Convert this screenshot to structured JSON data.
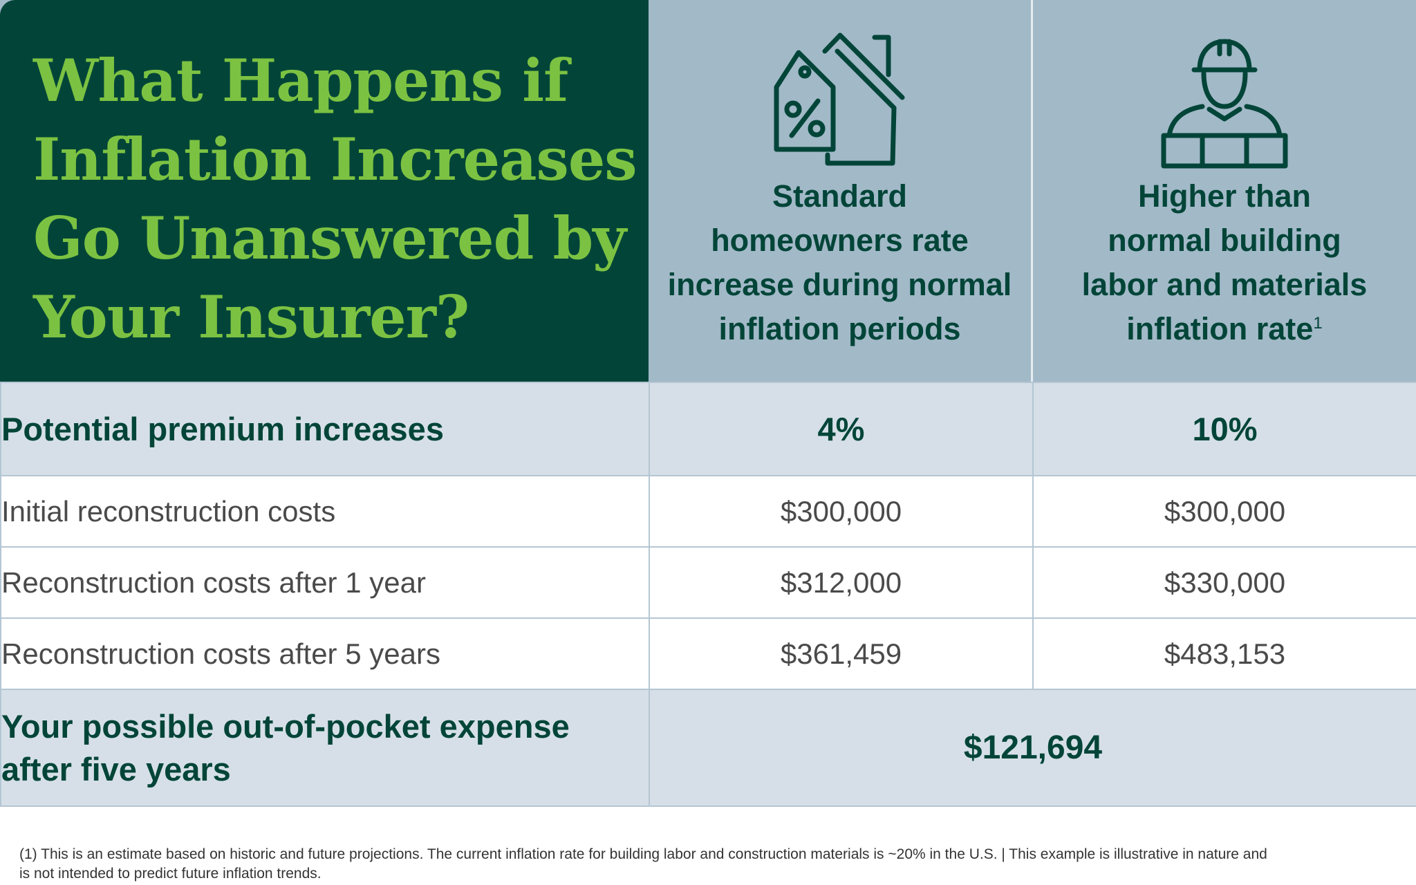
{
  "title": {
    "line1": "What Happens if",
    "line2": "Inflation Increases",
    "line3": "Go Unanswered by",
    "line4": "Your Insurer?"
  },
  "columns": [
    {
      "icon": "house-price-tag-percent-icon",
      "label_line1": "Standard",
      "label_line2": "homeowners rate",
      "label_line3": "increase during normal",
      "label_line4": "inflation periods"
    },
    {
      "icon": "construction-worker-bricks-icon",
      "label_line1": "Higher than",
      "label_line2": "normal building",
      "label_line3": "labor and materials",
      "label_line4": "inflation rate",
      "footnote_marker": "1"
    }
  ],
  "rows": {
    "premium": {
      "label": "Potential premium increases",
      "standard": "4%",
      "higher": "10%"
    },
    "initial": {
      "label": "Initial reconstruction costs",
      "standard": "$300,000",
      "higher": "$300,000"
    },
    "year1": {
      "label": "Reconstruction costs after 1 year",
      "standard": "$312,000",
      "higher": "$330,000"
    },
    "year5": {
      "label": "Reconstruction costs after 5 years",
      "standard": "$361,459",
      "higher": "$483,153"
    },
    "total": {
      "label_line1": "Your possible out-of-pocket expense",
      "label_line2": "after five years",
      "value": "$121,694"
    }
  },
  "footnote": {
    "line1": "(1) This is an estimate based on historic and future projections. The current inflation rate for building labor and construction materials is ~20% in the U.S.  |  This example is illustrative in nature and",
    "line2": "is not intended to predict future inflation trends."
  },
  "colors": {
    "dark_green": "#024538",
    "bright_green": "#7cc242",
    "header_blue": "#a2b9c8",
    "row_highlight": "#d6dfe7",
    "border": "#b4c6d3",
    "body_text": "#4a4a4a"
  }
}
